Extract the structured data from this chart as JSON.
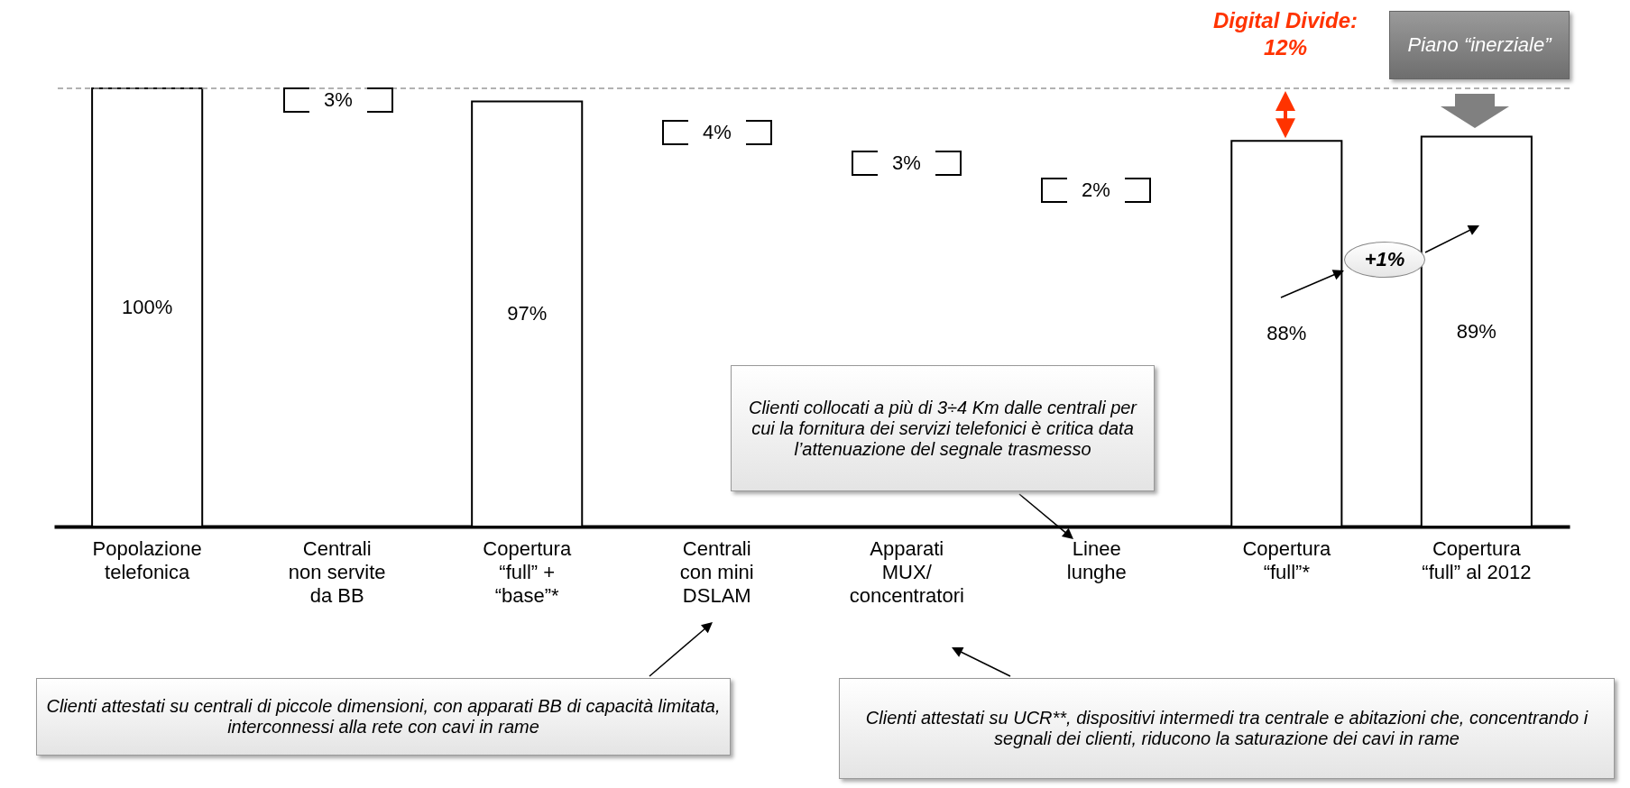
{
  "chart_data": {
    "type": "bar",
    "categories": [
      "Popolazione\ntelefonica",
      "Centrali\nnon servite\nda BB",
      "Copertura\n“full” +\n“base”*",
      "Centrali\ncon mini\nDSLAM",
      "Apparati\nMUX/\nconcentratori",
      "Linee\nlunghe",
      "Copertura\n“full”*",
      "Copertura\n“full” al 2012"
    ],
    "values": [
      100,
      null,
      97,
      null,
      null,
      null,
      88,
      89
    ],
    "colors": [
      "#ffffff",
      null,
      "#ffffff",
      null,
      null,
      null,
      "#ffffff",
      "#ffffff"
    ],
    "value_labels": [
      "100%",
      null,
      "97%",
      null,
      null,
      null,
      "88%",
      "89%"
    ],
    "ref_lines": [
      {
        "axis": "y",
        "value": 100,
        "color": "#999999",
        "line_style": "dashed"
      }
    ],
    "annotations": [
      "Digital Divide: 12%",
      "+1%",
      "Piano “inerziale”",
      "Clienti collocati a più di 3÷4 Km dalle centrali per cui la fornitura dei servizi telefonici è critica data l’attenuazione del segnale trasmesso",
      "Clienti attestati su centrali di piccole dimensioni, con apparati BB di capacità limitata, interconnessi alla rete con cavi in rame",
      "Clienti attestati su UCR**, dispositivi intermedi tra centrale e abitazioni che, concentrando i segnali dei clienti, riducono la saturazione dei cavi in rame",
      "3%",
      "4%",
      "3%",
      "2%"
    ]
  }
}
